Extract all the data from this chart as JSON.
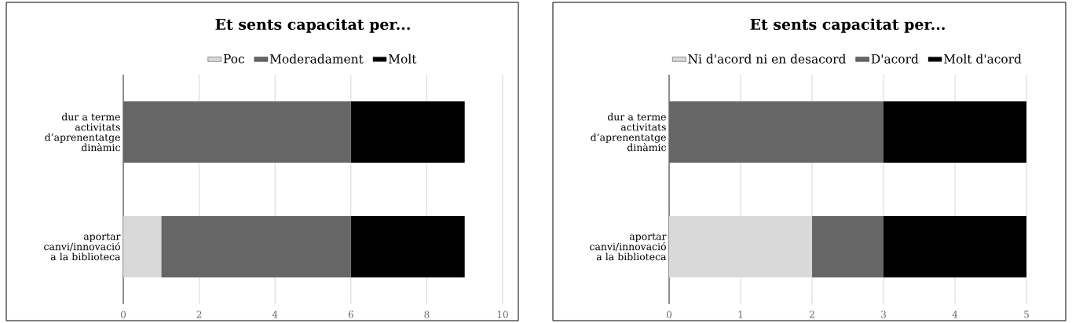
{
  "chart_data": [
    {
      "type": "bar",
      "orientation": "horizontal",
      "stacked": true,
      "title": "Et sents capacitat per...",
      "categories": [
        "dur a terme activitats d’aprenentatge dinàmic",
        "aportar canvi/innovació a la biblioteca"
      ],
      "series": [
        {
          "name": "Poc",
          "color": "#d9d9d9",
          "values": [
            0,
            1
          ]
        },
        {
          "name": "Moderadament",
          "color": "#666666",
          "values": [
            6,
            5
          ]
        },
        {
          "name": "Molt",
          "color": "#000000",
          "values": [
            3,
            3
          ]
        }
      ],
      "xlim": [
        0,
        10
      ],
      "xticks": [
        0,
        2,
        4,
        6,
        8,
        10
      ],
      "grid": "x",
      "legend": "top"
    },
    {
      "type": "bar",
      "orientation": "horizontal",
      "stacked": true,
      "title": "Et sents capacitat per...",
      "categories": [
        "dur a terme activitats d’aprenentatge dinàmic",
        "aportar canvi/innovació a la biblioteca"
      ],
      "series": [
        {
          "name": "Ni d'acord ni en desacord",
          "color": "#d9d9d9",
          "values": [
            0,
            2
          ]
        },
        {
          "name": "D'acord",
          "color": "#666666",
          "values": [
            3,
            1
          ]
        },
        {
          "name": "Molt d'acord",
          "color": "#000000",
          "values": [
            2,
            2
          ]
        }
      ],
      "xlim": [
        0,
        5
      ],
      "xticks": [
        0,
        1,
        2,
        3,
        4,
        5
      ],
      "grid": "x",
      "legend": "top"
    }
  ]
}
